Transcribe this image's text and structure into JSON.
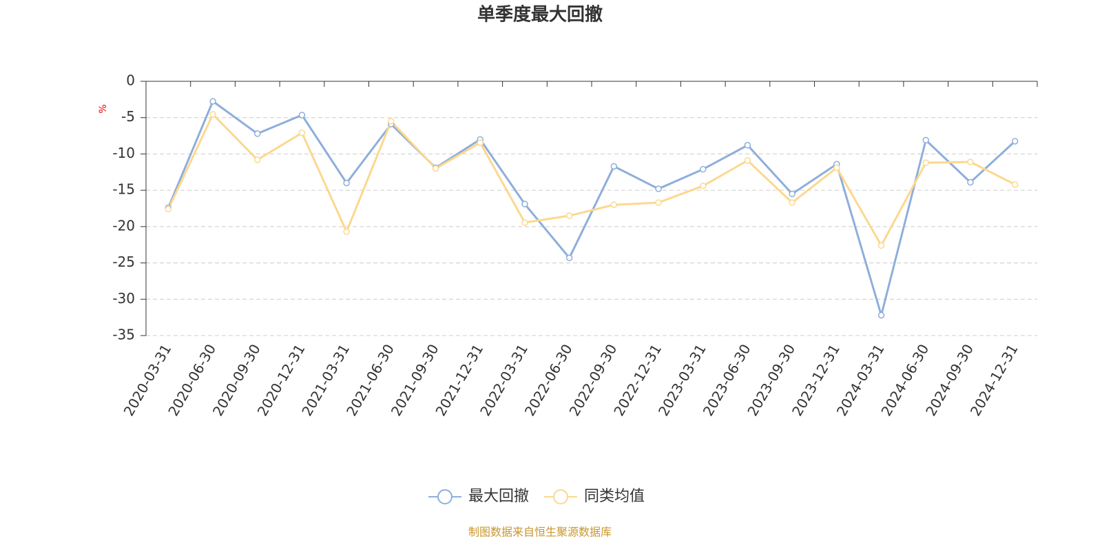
{
  "chart_data": {
    "type": "line",
    "title": "单季度最大回撤",
    "y_label": "%",
    "categories": [
      "2020-03-31",
      "2020-06-30",
      "2020-09-30",
      "2020-12-31",
      "2021-03-31",
      "2021-06-30",
      "2021-09-30",
      "2021-12-31",
      "2022-03-31",
      "2022-06-30",
      "2022-09-30",
      "2022-12-31",
      "2023-03-31",
      "2023-06-30",
      "2023-09-30",
      "2023-12-31",
      "2024-03-31",
      "2024-06-30",
      "2024-09-30",
      "2024-12-31"
    ],
    "series": [
      {
        "name": "最大回撤",
        "color": "#8eaedb",
        "values": [
          -17.4,
          -2.75,
          -7.2,
          -4.65,
          -14.0,
          -5.9,
          -11.9,
          -8.0,
          -16.9,
          -24.3,
          -11.7,
          -14.8,
          -12.1,
          -8.8,
          -15.5,
          -11.4,
          -32.2,
          -8.1,
          -13.9,
          -8.25
        ]
      },
      {
        "name": "同类均值",
        "color": "#fcd88e",
        "values": [
          -17.6,
          -4.55,
          -10.8,
          -7.1,
          -20.7,
          -5.5,
          -12.0,
          -8.45,
          -19.45,
          -18.5,
          -17.0,
          -16.7,
          -14.4,
          -10.9,
          -16.7,
          -11.9,
          -22.6,
          -11.2,
          -11.1,
          -14.2
        ]
      }
    ],
    "ylim": [
      -35,
      0
    ],
    "yticks": [
      0,
      -5,
      -10,
      -15,
      -20,
      -25,
      -30,
      -35
    ],
    "grid": true,
    "legend": "bottom",
    "source": "制图数据来自恒生聚源数据库",
    "source_color": "#c9962e"
  }
}
